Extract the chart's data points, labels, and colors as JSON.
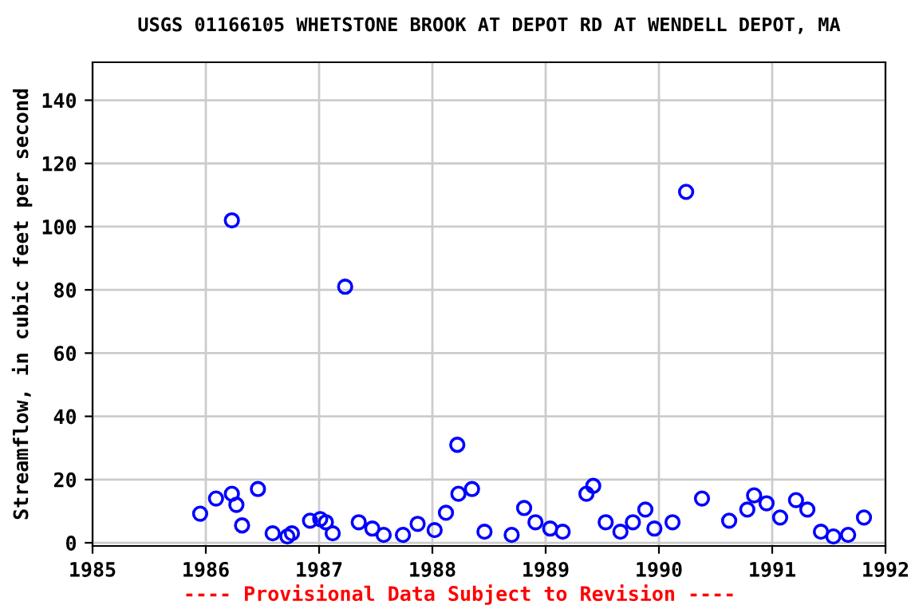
{
  "chart_data": {
    "type": "scatter",
    "title": "USGS 01166105 WHETSTONE BROOK AT DEPOT RD AT WENDELL DEPOT, MA",
    "ylabel": "Streamflow, in cubic feet per second",
    "annotations": [
      "---- Provisional Data Subject to Revision ----"
    ],
    "x": [
      1985.95,
      1986.09,
      1986.23,
      1986.23,
      1986.27,
      1986.32,
      1986.46,
      1986.59,
      1986.72,
      1986.76,
      1986.92,
      1987.01,
      1987.06,
      1987.12,
      1987.23,
      1987.35,
      1987.47,
      1987.57,
      1987.74,
      1987.87,
      1988.02,
      1988.12,
      1988.22,
      1988.23,
      1988.35,
      1988.46,
      1988.7,
      1988.81,
      1988.91,
      1989.04,
      1989.15,
      1989.36,
      1989.42,
      1989.53,
      1989.66,
      1989.77,
      1989.88,
      1989.96,
      1990.12,
      1990.24,
      1990.38,
      1990.62,
      1990.78,
      1990.84,
      1990.95,
      1991.07,
      1991.21,
      1991.31,
      1991.43,
      1991.54,
      1991.67,
      1991.81
    ],
    "series": [
      {
        "color": "#0000ff",
        "values": [
          9.2,
          14,
          102,
          15.5,
          12,
          5.5,
          17,
          3,
          2,
          3,
          7,
          7.5,
          6.5,
          3,
          81,
          6.5,
          4.5,
          2.5,
          2.5,
          6,
          4,
          9.5,
          31,
          15.5,
          17,
          3.5,
          2.5,
          11,
          6.5,
          4.5,
          3.5,
          15.5,
          18,
          6.5,
          3.5,
          6.5,
          10.5,
          4.5,
          6.5,
          111,
          14,
          7,
          10.5,
          15,
          12.5,
          8,
          13.5,
          10.5,
          3.5,
          2,
          2.5,
          8
        ]
      }
    ],
    "marker": "circle",
    "grid": true,
    "xlim": [
      1985,
      1992
    ],
    "xticks": [
      1985,
      1986,
      1987,
      1988,
      1989,
      1990,
      1991,
      1992
    ],
    "ylim": [
      -1,
      152
    ],
    "yticks": [
      0,
      20,
      40,
      60,
      80,
      100,
      120,
      140
    ]
  }
}
